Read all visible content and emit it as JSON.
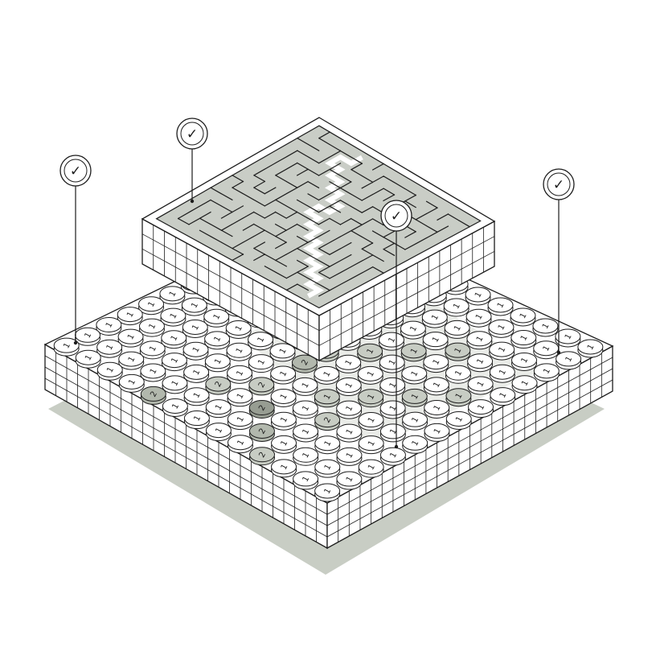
{
  "colors": {
    "shadow": "#c8cdc4",
    "ink": "#1c1c1c",
    "board_top": "#ffffff",
    "maze_fill": "#c9cdc6",
    "maze_path": "#ffffff",
    "coin_plain": "#ffffff",
    "coin_light": "#c7ccc3",
    "coin_mid": "#b2b8ad",
    "coin_dark": "#979d92",
    "glow": "#d9ddd5"
  },
  "icons": {
    "badge": "check-circle-icon"
  },
  "board": {
    "coin_rows": [
      "1111111111111",
      "1121111111111",
      "2121111111111",
      "1211221111111",
      "1121111111111",
      "1111111111111",
      "1111111111111",
      "1111112111111",
      "1111111111111",
      "1111112112111",
      "1111121211111",
      "1111111121111",
      "1111211112111"
    ],
    "coin_labels": [
      "1",
      "2"
    ]
  },
  "maze": {
    "size": 15
  },
  "badges": [
    {
      "label": "✓"
    },
    {
      "label": "✓"
    },
    {
      "label": "✓"
    },
    {
      "label": "✓"
    }
  ]
}
